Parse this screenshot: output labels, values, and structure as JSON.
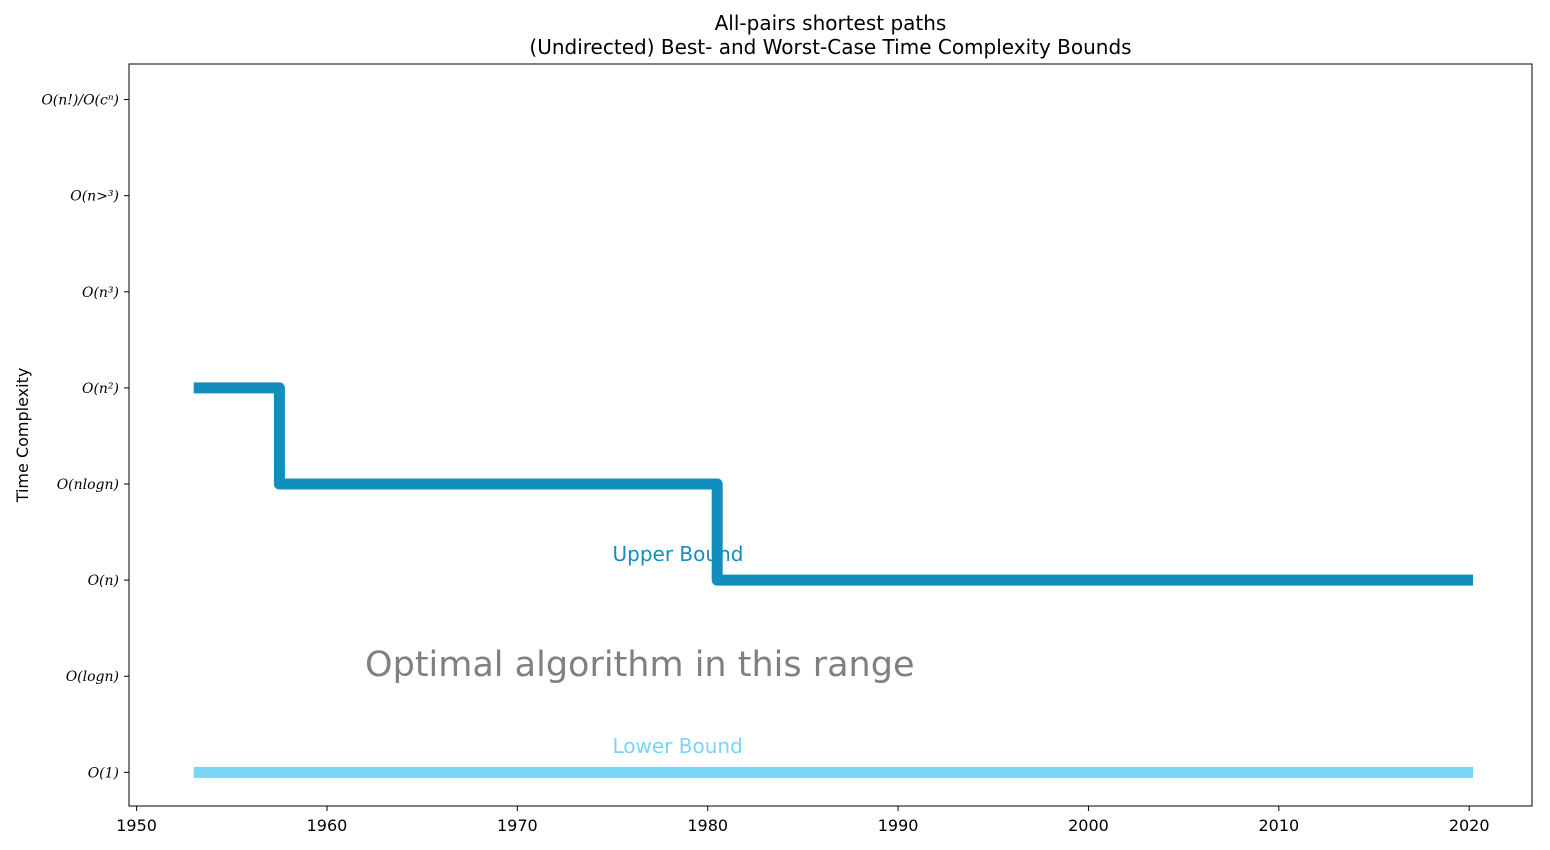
{
  "chart_data": {
    "type": "line",
    "title_line1": "All-pairs shortest paths",
    "title_line2": "(Undirected) Best- and Worst-Case Time Complexity Bounds",
    "xlabel": "",
    "ylabel": "Time Complexity",
    "xlim": [
      1949.6,
      2023.3
    ],
    "ylim": [
      -0.35,
      7.37
    ],
    "x_ticks": [
      1950,
      1960,
      1970,
      1980,
      1990,
      2000,
      2010,
      2020
    ],
    "y_ticks": [
      {
        "value": 0,
        "label": "O(1)"
      },
      {
        "value": 1,
        "label": "O(logn)"
      },
      {
        "value": 2,
        "label": "O(n)"
      },
      {
        "value": 3,
        "label": "O(nlogn)"
      },
      {
        "value": 4,
        "label": "O(n²)"
      },
      {
        "value": 5,
        "label": "O(n³)"
      },
      {
        "value": 6,
        "label": "O(n>³)"
      },
      {
        "value": 7,
        "label": "O(n!)/O(cⁿ)"
      }
    ],
    "grid": false,
    "series": [
      {
        "name": "Upper Bound",
        "color": "#118ebd",
        "step": "post",
        "points": [
          [
            1953,
            4
          ],
          [
            1957.5,
            4
          ],
          [
            1957.5,
            3
          ],
          [
            1980.5,
            3
          ],
          [
            1980.5,
            2
          ],
          [
            2020.2,
            2
          ]
        ]
      },
      {
        "name": "Lower Bound",
        "color": "#78d5f6",
        "step": "post",
        "points": [
          [
            1953,
            0
          ],
          [
            2020.2,
            0
          ]
        ]
      }
    ],
    "annotations": [
      {
        "text": "Upper Bound",
        "x": 1975,
        "y": 2.2,
        "color": "#118ebd",
        "kind": "upper"
      },
      {
        "text": "Optimal algorithm in this range",
        "x": 1962,
        "y": 1.0,
        "color": "#808080",
        "kind": "range"
      },
      {
        "text": "Lower Bound",
        "x": 1975,
        "y": 0.2,
        "color": "#78d5f6",
        "kind": "lower"
      }
    ]
  }
}
